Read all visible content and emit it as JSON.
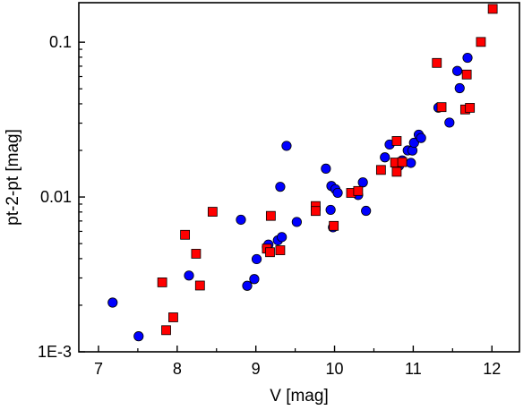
{
  "chart_data": {
    "type": "scatter",
    "xlabel": "V [mag]",
    "ylabel": "pt-2-pt [mag]",
    "xlim": [
      6.75,
      12.35
    ],
    "ylim": [
      0.001,
      0.18
    ],
    "yscale": "log",
    "xticks": [
      7,
      8,
      9,
      10,
      11,
      12
    ],
    "yticks": [
      {
        "value": 0.001,
        "label": "1E-3"
      },
      {
        "value": 0.01,
        "label": "0.01"
      },
      {
        "value": 0.1,
        "label": "0.1"
      }
    ],
    "grid": false,
    "series": [
      {
        "marker": "circle",
        "color": "#0000ff",
        "points": [
          [
            7.18,
            0.00208
          ],
          [
            7.51,
            0.00126
          ],
          [
            8.15,
            0.00311
          ],
          [
            8.81,
            0.00713
          ],
          [
            8.89,
            0.00267
          ],
          [
            8.98,
            0.00295
          ],
          [
            9.01,
            0.00397
          ],
          [
            9.14,
            0.00475
          ],
          [
            9.16,
            0.00493
          ],
          [
            9.28,
            0.00525
          ],
          [
            9.33,
            0.00551
          ],
          [
            9.31,
            0.01164
          ],
          [
            9.39,
            0.0214
          ],
          [
            9.52,
            0.0069
          ],
          [
            9.89,
            0.01525
          ],
          [
            9.95,
            0.00826
          ],
          [
            9.96,
            0.01178
          ],
          [
            10.01,
            0.01124
          ],
          [
            10.04,
            0.01064
          ],
          [
            9.98,
            0.00637
          ],
          [
            10.3,
            0.0103
          ],
          [
            10.36,
            0.01243
          ],
          [
            10.4,
            0.00814
          ],
          [
            10.64,
            0.01804
          ],
          [
            10.7,
            0.02183
          ],
          [
            10.82,
            0.01593
          ],
          [
            10.86,
            0.01723
          ],
          [
            10.93,
            0.02
          ],
          [
            10.97,
            0.01661
          ],
          [
            10.99,
            0.01997
          ],
          [
            11.01,
            0.02241
          ],
          [
            11.07,
            0.02528
          ],
          [
            11.1,
            0.02406
          ],
          [
            11.32,
            0.03777
          ],
          [
            11.46,
            0.03025
          ],
          [
            11.56,
            0.06522
          ],
          [
            11.59,
            0.05047
          ],
          [
            11.69,
            0.07932
          ]
        ]
      },
      {
        "marker": "square",
        "color": "#ff0000",
        "points": [
          [
            7.81,
            0.00281
          ],
          [
            7.95,
            0.00167
          ],
          [
            7.86,
            0.00138
          ],
          [
            8.1,
            0.0057
          ],
          [
            8.24,
            0.0043
          ],
          [
            8.29,
            0.00268
          ],
          [
            8.45,
            0.00803
          ],
          [
            9.14,
            0.00464
          ],
          [
            9.18,
            0.0044
          ],
          [
            9.19,
            0.00755
          ],
          [
            9.31,
            0.00453
          ],
          [
            9.76,
            0.00874
          ],
          [
            9.76,
            0.00812
          ],
          [
            9.99,
            0.00651
          ],
          [
            10.21,
            0.01063
          ],
          [
            10.3,
            0.01094
          ],
          [
            10.59,
            0.01496
          ],
          [
            10.77,
            0.0167
          ],
          [
            10.79,
            0.02301
          ],
          [
            10.79,
            0.01455
          ],
          [
            10.86,
            0.0168
          ],
          [
            11.3,
            0.07347
          ],
          [
            11.36,
            0.03807
          ],
          [
            11.66,
            0.03677
          ],
          [
            11.68,
            0.06183
          ],
          [
            11.72,
            0.03768
          ],
          [
            11.86,
            0.1004
          ],
          [
            12.01,
            0.1642
          ]
        ]
      }
    ]
  }
}
